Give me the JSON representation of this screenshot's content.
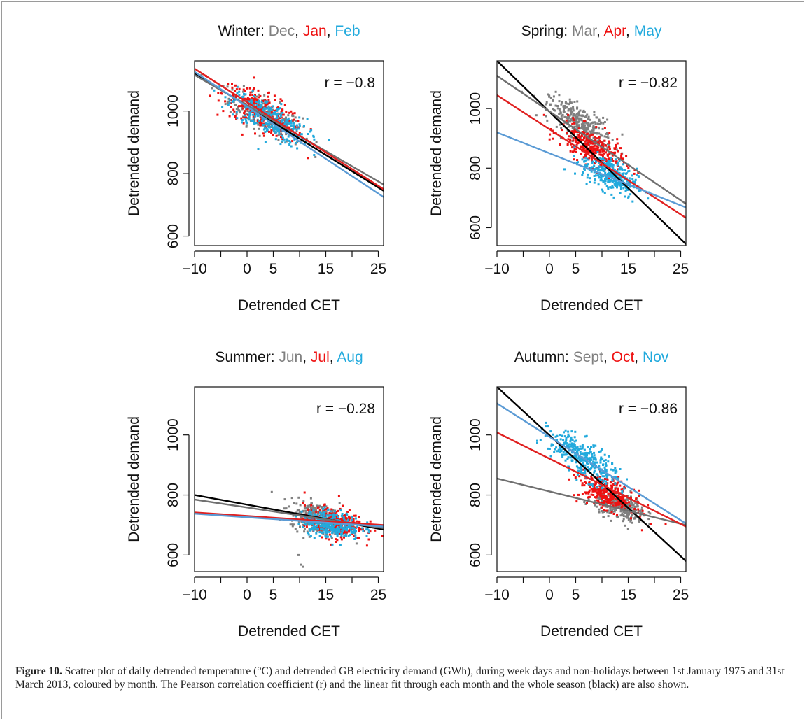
{
  "caption": {
    "label": "Figure 10.",
    "text": "Scatter plot of daily detrended temperature (°C) and detrended GB electricity demand (GWh), during week days and non-holidays between 1st January 1975 and 31st March 2013, coloured by month. The Pearson correlation coefficient (r) and the linear fit through each month and the whole season (black) are also shown."
  },
  "colors": {
    "month1": "#808080",
    "month2": "#ee1111",
    "month3": "#22aadd",
    "fit1": "#707070",
    "fit2": "#e02020",
    "fit3": "#5b9bd5",
    "season_fit": "#000000"
  },
  "chart_data": [
    {
      "type": "scatter",
      "title_prefix": "Winter:",
      "months": [
        "Dec",
        "Jan",
        "Feb"
      ],
      "r_label": "r = −0.8",
      "xlabel": "Detrended CET",
      "ylabel": "Detrended demand",
      "xlim": [
        -10,
        26
      ],
      "ylim": [
        570,
        1160
      ],
      "xticks": [
        -10,
        -5,
        0,
        5,
        10,
        15,
        20,
        25
      ],
      "xtick_labels": [
        "−10",
        "",
        "0",
        "5",
        "",
        "15",
        "",
        "25"
      ],
      "yticks": [
        600,
        800,
        1000
      ],
      "clusters": [
        {
          "month": 0,
          "cx": 3.5,
          "cy": 985,
          "sx": 3.5,
          "slope": -8.0,
          "sd": 28,
          "n": 260
        },
        {
          "month": 1,
          "cx": 3.0,
          "cy": 995,
          "sx": 3.8,
          "slope": -8.0,
          "sd": 30,
          "n": 260
        },
        {
          "month": 2,
          "cx": 4.2,
          "cy": 975,
          "sx": 3.6,
          "slope": -8.0,
          "sd": 28,
          "n": 300
        }
      ],
      "fits": [
        {
          "series": "season",
          "x": [
            -10,
            26
          ],
          "y": [
            1120,
            745
          ]
        },
        {
          "series": "month1",
          "x": [
            -10,
            26
          ],
          "y": [
            1115,
            765
          ]
        },
        {
          "series": "month2",
          "x": [
            -10,
            26
          ],
          "y": [
            1135,
            750
          ]
        },
        {
          "series": "month3",
          "x": [
            -10,
            26
          ],
          "y": [
            1125,
            725
          ]
        }
      ]
    },
    {
      "type": "scatter",
      "title_prefix": "Spring:",
      "months": [
        "Mar",
        "Apr",
        "May"
      ],
      "r_label": "r = −0.82",
      "xlabel": "Detrended CET",
      "ylabel": "Detrended demand",
      "xlim": [
        -10,
        26
      ],
      "ylim": [
        540,
        1160
      ],
      "xticks": [
        -10,
        -5,
        0,
        5,
        10,
        15,
        20,
        25
      ],
      "xtick_labels": [
        "−10",
        "",
        "0",
        "5",
        "",
        "15",
        "",
        "25"
      ],
      "yticks": [
        600,
        800,
        1000
      ],
      "clusters": [
        {
          "month": 0,
          "cx": 6.0,
          "cy": 950,
          "sx": 3.0,
          "slope": -9.0,
          "sd": 28,
          "n": 320
        },
        {
          "month": 1,
          "cx": 8.0,
          "cy": 868,
          "sx": 3.0,
          "slope": -8.0,
          "sd": 30,
          "n": 300
        },
        {
          "month": 2,
          "cx": 11.5,
          "cy": 778,
          "sx": 2.6,
          "slope": -7.0,
          "sd": 28,
          "n": 320
        }
      ],
      "fits": [
        {
          "series": "season",
          "x": [
            -10,
            26
          ],
          "y": [
            1160,
            545
          ]
        },
        {
          "series": "month1",
          "x": [
            -10,
            26
          ],
          "y": [
            1110,
            680
          ]
        },
        {
          "series": "month2",
          "x": [
            -10,
            26
          ],
          "y": [
            1045,
            633
          ]
        },
        {
          "series": "month3",
          "x": [
            -10,
            26
          ],
          "y": [
            920,
            668
          ]
        }
      ]
    },
    {
      "type": "scatter",
      "title_prefix": "Summer:",
      "months": [
        "Jun",
        "Jul",
        "Aug"
      ],
      "r_label": "r = −0.28",
      "xlabel": "Detrended CET",
      "ylabel": "Detrended demand",
      "xlim": [
        -10,
        26
      ],
      "ylim": [
        545,
        1160
      ],
      "xticks": [
        -10,
        -5,
        0,
        5,
        10,
        15,
        20,
        25
      ],
      "xtick_labels": [
        "−10",
        "",
        "0",
        "5",
        "",
        "15",
        "",
        "25"
      ],
      "yticks": [
        600,
        800,
        1000
      ],
      "clusters": [
        {
          "month": 0,
          "cx": 13.5,
          "cy": 722,
          "sx": 2.6,
          "slope": -4.0,
          "sd": 25,
          "n": 300
        },
        {
          "month": 1,
          "cx": 16.5,
          "cy": 708,
          "sx": 2.8,
          "slope": -2.0,
          "sd": 25,
          "n": 300
        },
        {
          "month": 2,
          "cx": 16.0,
          "cy": 703,
          "sx": 2.8,
          "slope": -2.0,
          "sd": 22,
          "n": 320
        }
      ],
      "outliers": [
        {
          "month": 0,
          "x": 10.2,
          "y": 568
        },
        {
          "month": 0,
          "x": 10.6,
          "y": 561
        },
        {
          "month": 0,
          "x": 9.8,
          "y": 600
        }
      ],
      "fits": [
        {
          "series": "season",
          "x": [
            -10,
            26
          ],
          "y": [
            800,
            685
          ]
        },
        {
          "series": "month1",
          "x": [
            -10,
            26
          ],
          "y": [
            785,
            690
          ]
        },
        {
          "series": "month2",
          "x": [
            -10,
            26
          ],
          "y": [
            742,
            700
          ]
        },
        {
          "series": "month3",
          "x": [
            -10,
            26
          ],
          "y": [
            738,
            695
          ]
        }
      ]
    },
    {
      "type": "scatter",
      "title_prefix": "Autumn:",
      "months": [
        "Sept",
        "Oct",
        "Nov"
      ],
      "r_label": "r = −0.86",
      "xlabel": "Detrended CET",
      "ylabel": "Detrended demand",
      "xlim": [
        -10,
        26
      ],
      "ylim": [
        545,
        1160
      ],
      "xticks": [
        -10,
        -5,
        0,
        5,
        10,
        15,
        20,
        25
      ],
      "xtick_labels": [
        "−10",
        "",
        "0",
        "5",
        "",
        "15",
        "",
        "25"
      ],
      "yticks": [
        600,
        800,
        1000
      ],
      "clusters": [
        {
          "month": 0,
          "cx": 13.5,
          "cy": 762,
          "sx": 2.4,
          "slope": -5.0,
          "sd": 22,
          "n": 320
        },
        {
          "month": 1,
          "cx": 11.0,
          "cy": 805,
          "sx": 2.6,
          "slope": -7.0,
          "sd": 25,
          "n": 320
        },
        {
          "month": 2,
          "cx": 6.5,
          "cy": 920,
          "sx": 3.2,
          "slope": -10.0,
          "sd": 30,
          "n": 360
        }
      ],
      "fits": [
        {
          "series": "season",
          "x": [
            -10,
            26
          ],
          "y": [
            1160,
            580
          ]
        },
        {
          "series": "month1",
          "x": [
            -10,
            26
          ],
          "y": [
            855,
            700
          ]
        },
        {
          "series": "month2",
          "x": [
            -10,
            26
          ],
          "y": [
            1008,
            695
          ]
        },
        {
          "series": "month3",
          "x": [
            -10,
            26
          ],
          "y": [
            1105,
            705
          ]
        }
      ]
    }
  ]
}
